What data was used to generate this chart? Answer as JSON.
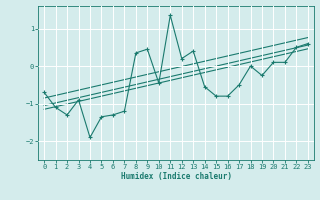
{
  "xlabel": "Humidex (Indice chaleur)",
  "x_values": [
    0,
    1,
    2,
    3,
    4,
    5,
    6,
    7,
    8,
    9,
    10,
    11,
    12,
    13,
    14,
    15,
    16,
    17,
    18,
    19,
    20,
    21,
    22,
    23
  ],
  "main_line": [
    -0.7,
    -1.1,
    -1.3,
    -0.9,
    -1.9,
    -1.35,
    -1.3,
    -1.2,
    0.35,
    0.45,
    -0.45,
    1.35,
    0.2,
    0.4,
    -0.55,
    -0.8,
    -0.8,
    -0.5,
    0.0,
    -0.25,
    0.1,
    0.1,
    0.5,
    0.6
  ],
  "trend_upper": [
    -0.85,
    -0.78,
    -0.71,
    -0.64,
    -0.57,
    -0.5,
    -0.43,
    -0.36,
    -0.29,
    -0.22,
    -0.15,
    -0.08,
    -0.01,
    0.06,
    0.13,
    0.2,
    0.27,
    0.34,
    0.41,
    0.48,
    0.55,
    0.62,
    0.69,
    0.76
  ],
  "trend_mid": [
    -1.05,
    -0.98,
    -0.91,
    -0.84,
    -0.77,
    -0.7,
    -0.63,
    -0.56,
    -0.49,
    -0.42,
    -0.35,
    -0.28,
    -0.21,
    -0.14,
    -0.07,
    0.0,
    0.07,
    0.14,
    0.21,
    0.28,
    0.35,
    0.42,
    0.49,
    0.56
  ],
  "trend_lower": [
    -1.15,
    -1.08,
    -1.01,
    -0.94,
    -0.87,
    -0.8,
    -0.73,
    -0.66,
    -0.59,
    -0.52,
    -0.45,
    -0.38,
    -0.31,
    -0.24,
    -0.17,
    -0.1,
    -0.03,
    0.04,
    0.11,
    0.18,
    0.25,
    0.32,
    0.39,
    0.46
  ],
  "line_color": "#1a7a6e",
  "bg_color": "#d4ecec",
  "grid_color": "#ffffff",
  "ylim": [
    -2.5,
    1.6
  ],
  "xlim": [
    -0.5,
    23.5
  ],
  "yticks": [
    -2,
    -1,
    0,
    1
  ],
  "xticks": [
    0,
    1,
    2,
    3,
    4,
    5,
    6,
    7,
    8,
    9,
    10,
    11,
    12,
    13,
    14,
    15,
    16,
    17,
    18,
    19,
    20,
    21,
    22,
    23
  ]
}
